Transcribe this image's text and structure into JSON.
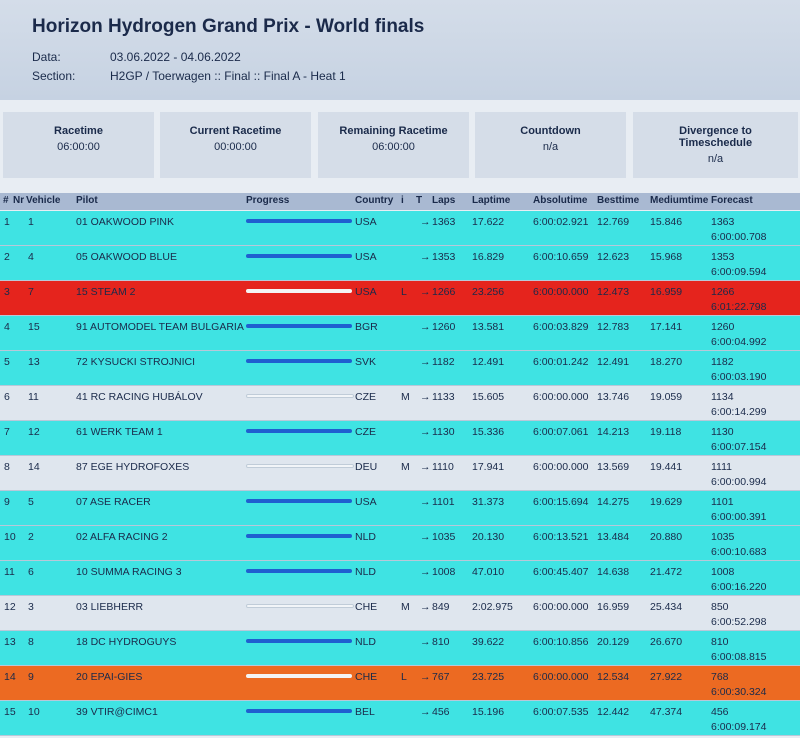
{
  "header": {
    "title": "Horizon Hydrogen Grand Prix - World finals",
    "date_label": "Data:",
    "date": "03.06.2022 - 04.06.2022",
    "section_label": "Section:",
    "section": "H2GP / Toerwagen :: Final :: Final A - Heat 1"
  },
  "boxes": [
    {
      "label": "Racetime",
      "value": "06:00:00"
    },
    {
      "label": "Current Racetime",
      "value": "00:00:00"
    },
    {
      "label": "Remaining Racetime",
      "value": "06:00:00"
    },
    {
      "label": "Countdown",
      "value": "n/a"
    },
    {
      "label": "Divergence to Timeschedule",
      "value": "n/a"
    }
  ],
  "table": {
    "columns": [
      "#",
      "Nr",
      "Vehicle",
      "Pilot",
      "Progress",
      "Country",
      "i",
      "T",
      "Laps",
      "Laptime",
      "Absolutime",
      "Besttime",
      "Mediumtime",
      "Forecast"
    ],
    "rows": [
      {
        "pos": 1,
        "nr": 1,
        "pilot": "01 OAKWOOD PINK",
        "country": "USA",
        "t": "→",
        "laps": 1363,
        "laptime": "17.622",
        "absolutetime": "6:00:02.921",
        "besttime": "12.769",
        "mediumtime": "15.846",
        "forecast_laps": 1363,
        "forecast_time": "6:00:00.708",
        "color": "#3fe3e3"
      },
      {
        "pos": 2,
        "nr": 4,
        "pilot": "05 OAKWOOD BLUE",
        "country": "USA",
        "t": "→",
        "laps": 1353,
        "laptime": "16.829",
        "absolutetime": "6:00:10.659",
        "besttime": "12.623",
        "mediumtime": "15.968",
        "forecast_laps": 1353,
        "forecast_time": "6:00:09.594",
        "color": "#3fe3e3"
      },
      {
        "pos": 3,
        "nr": 7,
        "pilot": "15 STEAM 2",
        "country": "USA",
        "i": "L",
        "t": "→",
        "laps": 1266,
        "laptime": "23.256",
        "absolutetime": "6:00:00.000",
        "besttime": "12.473",
        "mediumtime": "16.959",
        "forecast_laps": 1266,
        "forecast_time": "6:01:22.798",
        "color": "#e5241d"
      },
      {
        "pos": 4,
        "nr": 15,
        "pilot": "91 AUTOMODEL TEAM BULGARIA",
        "country": "BGR",
        "t": "→",
        "laps": 1260,
        "laptime": "13.581",
        "absolutetime": "6:00:03.829",
        "besttime": "12.783",
        "mediumtime": "17.141",
        "forecast_laps": 1260,
        "forecast_time": "6:00:04.992",
        "color": "#3fe3e3"
      },
      {
        "pos": 5,
        "nr": 13,
        "pilot": "72 KYSUCKI STROJNICI",
        "country": "SVK",
        "t": "→",
        "laps": 1182,
        "laptime": "12.491",
        "absolutetime": "6:00:01.242",
        "besttime": "12.491",
        "mediumtime": "18.270",
        "forecast_laps": 1182,
        "forecast_time": "6:00:03.190",
        "color": "#3fe3e3"
      },
      {
        "pos": 6,
        "nr": 11,
        "pilot": "41 RC RACING HUBÁLOV",
        "country": "CZE",
        "i": "M",
        "t": "→",
        "laps": 1133,
        "laptime": "15.605",
        "absolutetime": "6:00:00.000",
        "besttime": "13.746",
        "mediumtime": "19.059",
        "forecast_laps": 1134,
        "forecast_time": "6:00:14.299",
        "color": "#dfe6ee"
      },
      {
        "pos": 7,
        "nr": 12,
        "pilot": "61 WERK TEAM 1",
        "country": "CZE",
        "t": "→",
        "laps": 1130,
        "laptime": "15.336",
        "absolutetime": "6:00:07.061",
        "besttime": "14.213",
        "mediumtime": "19.118",
        "forecast_laps": 1130,
        "forecast_time": "6:00:07.154",
        "color": "#3fe3e3"
      },
      {
        "pos": 8,
        "nr": 14,
        "pilot": "87 EGE HYDROFOXES",
        "country": "DEU",
        "i": "M",
        "t": "→",
        "laps": 1110,
        "laptime": "17.941",
        "absolutetime": "6:00:00.000",
        "besttime": "13.569",
        "mediumtime": "19.441",
        "forecast_laps": 1111,
        "forecast_time": "6:00:00.994",
        "color": "#dfe6ee"
      },
      {
        "pos": 9,
        "nr": 5,
        "pilot": "07 ASE RACER",
        "country": "USA",
        "t": "→",
        "laps": 1101,
        "laptime": "31.373",
        "absolutetime": "6:00:15.694",
        "besttime": "14.275",
        "mediumtime": "19.629",
        "forecast_laps": 1101,
        "forecast_time": "6:00:00.391",
        "color": "#3fe3e3"
      },
      {
        "pos": 10,
        "nr": 2,
        "pilot": "02 ALFA RACING 2",
        "country": "NLD",
        "t": "→",
        "laps": 1035,
        "laptime": "20.130",
        "absolutetime": "6:00:13.521",
        "besttime": "13.484",
        "mediumtime": "20.880",
        "forecast_laps": 1035,
        "forecast_time": "6:00:10.683",
        "color": "#3fe3e3"
      },
      {
        "pos": 11,
        "nr": 6,
        "pilot": "10 SUMMA RACING 3",
        "country": "NLD",
        "t": "→",
        "laps": 1008,
        "laptime": "47.010",
        "absolutetime": "6:00:45.407",
        "besttime": "14.638",
        "mediumtime": "21.472",
        "forecast_laps": 1008,
        "forecast_time": "6:00:16.220",
        "color": "#3fe3e3"
      },
      {
        "pos": 12,
        "nr": 3,
        "pilot": "03 LIEBHERR",
        "country": "CHE",
        "i": "M",
        "t": "→",
        "laps": 849,
        "laptime": "2:02.975",
        "absolutetime": "6:00:00.000",
        "besttime": "16.959",
        "mediumtime": "25.434",
        "forecast_laps": 850,
        "forecast_time": "6:00:52.298",
        "color": "#dfe6ee"
      },
      {
        "pos": 13,
        "nr": 8,
        "pilot": "18 DC HYDROGUYS",
        "country": "NLD",
        "t": "→",
        "laps": 810,
        "laptime": "39.622",
        "absolutetime": "6:00:10.856",
        "besttime": "20.129",
        "mediumtime": "26.670",
        "forecast_laps": 810,
        "forecast_time": "6:00:08.815",
        "color": "#3fe3e3"
      },
      {
        "pos": 14,
        "nr": 9,
        "pilot": "20 EPAI-GIES",
        "country": "CHE",
        "i": "L",
        "t": "→",
        "laps": 767,
        "laptime": "23.725",
        "absolutetime": "6:00:00.000",
        "besttime": "12.534",
        "mediumtime": "27.922",
        "forecast_laps": 768,
        "forecast_time": "6:00:30.324",
        "color": "#ec6a22"
      },
      {
        "pos": 15,
        "nr": 10,
        "pilot": "39 VTIR@CIMC1",
        "country": "BEL",
        "t": "→",
        "laps": 456,
        "laptime": "15.196",
        "absolutetime": "6:00:07.535",
        "besttime": "12.442",
        "mediumtime": "47.374",
        "forecast_laps": 456,
        "forecast_time": "6:00:09.174",
        "color": "#3fe3e3"
      }
    ]
  }
}
